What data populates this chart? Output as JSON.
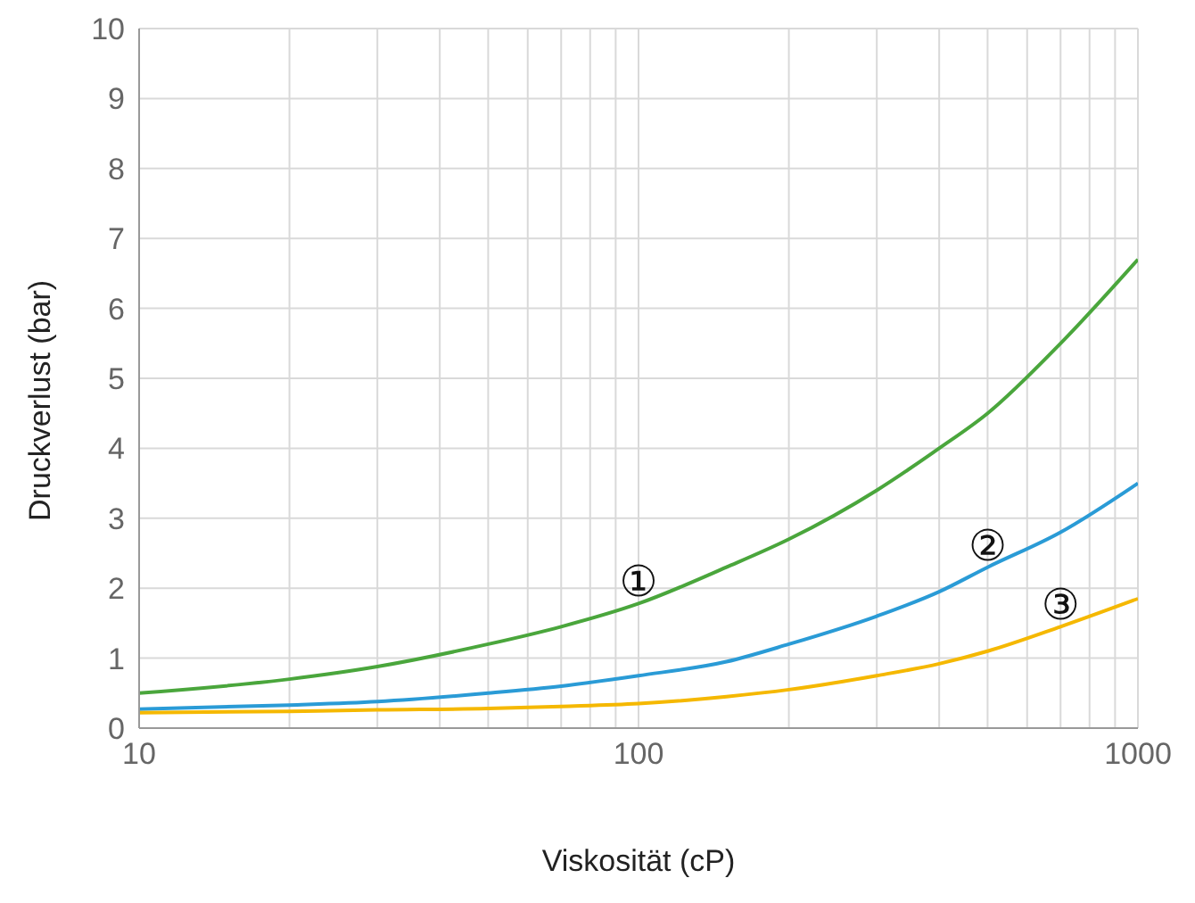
{
  "chart_data": {
    "type": "line",
    "xlabel": "Viskosität (cP)",
    "ylabel": "Druckverlust (bar)",
    "log": "x",
    "grid": true,
    "legend": false,
    "marker": "none",
    "line_style": "solid",
    "xlim": [
      10,
      1000
    ],
    "xticks": [
      10,
      {
        "value": 20,
        "label": null
      },
      {
        "value": 30,
        "label": null
      },
      {
        "value": 40,
        "label": null
      },
      {
        "value": 50,
        "label": null
      },
      {
        "value": 60,
        "label": null
      },
      {
        "value": 70,
        "label": null
      },
      {
        "value": 80,
        "label": null
      },
      {
        "value": 90,
        "label": null
      },
      100,
      {
        "value": 200,
        "label": null
      },
      {
        "value": 300,
        "label": null
      },
      {
        "value": 400,
        "label": null
      },
      {
        "value": 500,
        "label": null
      },
      {
        "value": 600,
        "label": null
      },
      {
        "value": 700,
        "label": null
      },
      {
        "value": 800,
        "label": null
      },
      {
        "value": 900,
        "label": null
      },
      1000
    ],
    "ylim": [
      0,
      10
    ],
    "yticks": [
      0,
      1,
      2,
      3,
      4,
      5,
      6,
      7,
      8,
      9,
      10
    ],
    "x": [
      10,
      20,
      30,
      50,
      70,
      100,
      150,
      200,
      300,
      400,
      500,
      700,
      1000
    ],
    "series": [
      {
        "color": "#4aa63c",
        "values": [
          0.5,
          0.7,
          0.88,
          1.2,
          1.45,
          1.78,
          2.3,
          2.7,
          3.4,
          4.0,
          4.5,
          5.5,
          6.7
        ]
      },
      {
        "color": "#2a9bd6",
        "values": [
          0.27,
          0.33,
          0.38,
          0.5,
          0.6,
          0.75,
          0.95,
          1.2,
          1.6,
          1.95,
          2.3,
          2.8,
          3.5
        ]
      },
      {
        "color": "#f5b800",
        "values": [
          0.22,
          0.24,
          0.26,
          0.28,
          0.31,
          0.35,
          0.45,
          0.55,
          0.75,
          0.92,
          1.1,
          1.45,
          1.85
        ]
      }
    ],
    "annotations": [
      {
        "text": "①",
        "x": 100,
        "y": 1.78
      },
      {
        "text": "②",
        "x": 500,
        "y": 2.3
      },
      {
        "text": "③",
        "x": 700,
        "y": 1.45
      }
    ]
  }
}
